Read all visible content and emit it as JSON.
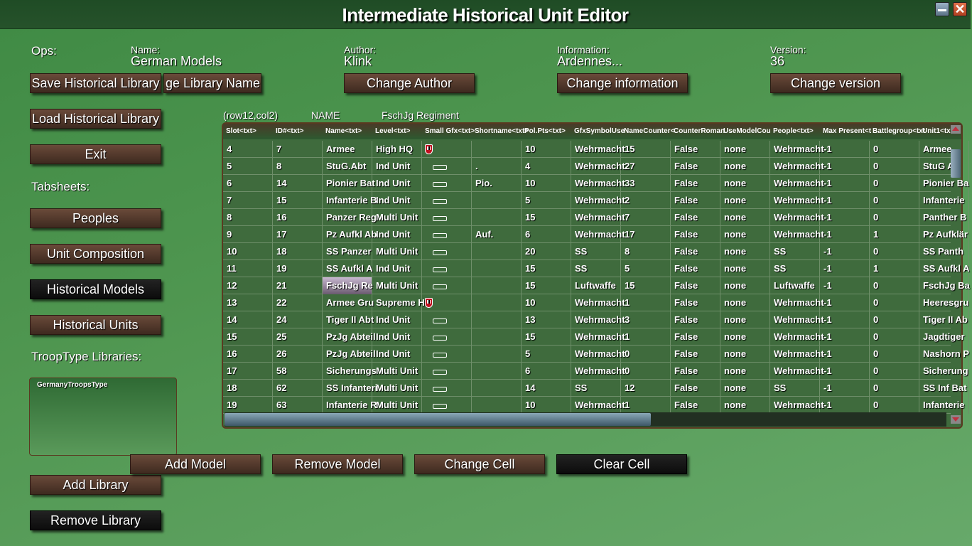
{
  "window": {
    "title": "Intermediate Historical Unit Editor"
  },
  "ops": {
    "label": "Ops:",
    "name_label": "Name:",
    "name_value": "German Models",
    "author_label": "Author:",
    "author_value": "Klink",
    "info_label": "Information:",
    "info_value": "Ardennes...",
    "version_label": "Version:",
    "version_value": "36",
    "save": "Save Historical Library",
    "change_name": "ge Library Name",
    "change_author": "Change Author",
    "change_info": "Change information",
    "change_version": "Change version",
    "load": "Load Historical Library",
    "exit": "Exit"
  },
  "tabsheets": {
    "label": "Tabsheets:",
    "items": [
      "Peoples",
      "Unit Composition",
      "Historical Models",
      "Historical Units"
    ],
    "selected": "Historical Models"
  },
  "troop": {
    "label": "TroopType Libraries:",
    "libraries": [
      "GermanyTroopsType"
    ],
    "add": "Add Library",
    "remove": "Remove Library"
  },
  "cellinfo": {
    "pos": "(row12,col2)",
    "field": "NAME",
    "value": "FschJg Regiment"
  },
  "grid": {
    "columns": [
      "Slot<txt>",
      "ID#<txt>",
      "Name<txt>",
      "Level<txt>",
      "Small Gfx<txt>",
      "Shortname<txt>",
      "Pol.Pts<txt>",
      "GfxSymbolUse",
      "NameCounter<",
      "CounterRoman",
      "UseModelCou",
      "People<txt>",
      "Max Present<t",
      "Battlegroup<txt",
      "Unit1<txt>"
    ],
    "rows": [
      [
        "4",
        "7",
        "Armee",
        "High HQ",
        "shield",
        "",
        "10",
        "Wehrmacht",
        "15",
        "False",
        "none",
        "Wehrmacht",
        "-1",
        "0",
        "Armee"
      ],
      [
        "5",
        "8",
        "StuG.Abt",
        "Ind Unit",
        "counter",
        ".",
        "4",
        "Wehrmacht",
        "27",
        "False",
        "none",
        "Wehrmacht",
        "-1",
        "0",
        "StuG A"
      ],
      [
        "6",
        "14",
        "Pionier Bat",
        "Ind Unit",
        "counter",
        "Pio.",
        "10",
        "Wehrmacht",
        "33",
        "False",
        "none",
        "Wehrmacht",
        "-1",
        "0",
        "Pionier Ba"
      ],
      [
        "7",
        "15",
        "Infanterie B",
        "Ind Unit",
        "counter",
        "",
        "5",
        "Wehrmacht",
        "2",
        "False",
        "none",
        "Wehrmacht",
        "-1",
        "0",
        "Infanterie"
      ],
      [
        "8",
        "16",
        "Panzer Reg",
        "Multi Unit",
        "counter",
        "",
        "15",
        "Wehrmacht",
        "7",
        "False",
        "none",
        "Wehrmacht",
        "-1",
        "0",
        "Panther B"
      ],
      [
        "9",
        "17",
        "Pz Aufkl Ab",
        "Ind Unit",
        "counter",
        "Auf.",
        "6",
        "Wehrmacht",
        "17",
        "False",
        "none",
        "Wehrmacht",
        "-1",
        "1",
        "Pz Aufklär"
      ],
      [
        "10",
        "18",
        "SS Panzer",
        "Multi Unit",
        "counter",
        "",
        "20",
        "SS",
        "8",
        "False",
        "none",
        "SS",
        "-1",
        "0",
        "SS Panth"
      ],
      [
        "11",
        "19",
        "SS Aufkl A",
        "Ind Unit",
        "counter",
        "",
        "15",
        "SS",
        "5",
        "False",
        "none",
        "SS",
        "-1",
        "1",
        "SS Aufkl A"
      ],
      [
        "12",
        "21",
        "FschJg Re",
        "Multi Unit",
        "counter",
        "",
        "15",
        "Luftwaffe",
        "15",
        "False",
        "none",
        "Luftwaffe",
        "-1",
        "0",
        "FschJg Ba"
      ],
      [
        "13",
        "22",
        "Armee Gru",
        "Supreme H",
        "shield",
        "",
        "10",
        "Wehrmacht",
        "1",
        "False",
        "none",
        "Wehrmacht",
        "-1",
        "0",
        "Heeresgru"
      ],
      [
        "14",
        "24",
        "Tiger II Abt",
        "Ind Unit",
        "counter",
        "",
        "13",
        "Wehrmacht",
        "3",
        "False",
        "none",
        "Wehrmacht",
        "-1",
        "0",
        "Tiger II Ab"
      ],
      [
        "15",
        "25",
        "PzJg Abteil",
        "Ind Unit",
        "counter",
        "",
        "15",
        "Wehrmacht",
        "1",
        "False",
        "none",
        "Wehrmacht",
        "-1",
        "0",
        "Jagdtiger"
      ],
      [
        "16",
        "26",
        "PzJg Abteil",
        "Ind Unit",
        "counter",
        "",
        "5",
        "Wehrmacht",
        "0",
        "False",
        "none",
        "Wehrmacht",
        "-1",
        "0",
        "Nashorn P"
      ],
      [
        "17",
        "58",
        "Sicherungs",
        "Multi Unit",
        "counter",
        "",
        "6",
        "Wehrmacht",
        "0",
        "False",
        "none",
        "Wehrmacht",
        "-1",
        "0",
        "Sicherung"
      ],
      [
        "18",
        "62",
        "SS Infanteri",
        "Multi Unit",
        "counter",
        "",
        "14",
        "SS",
        "12",
        "False",
        "none",
        "SS",
        "-1",
        "0",
        "SS Inf Bat"
      ],
      [
        "19",
        "63",
        "Infanterie R",
        "Multi Unit",
        "counter",
        "",
        "10",
        "Wehrmacht",
        "1",
        "False",
        "none",
        "Wehrmacht",
        "-1",
        "0",
        "Infanterie"
      ]
    ],
    "selected_cell": {
      "row": "12",
      "col": "2"
    }
  },
  "actions": {
    "add_model": "Add Model",
    "remove_model": "Remove Model",
    "change_cell": "Change Cell",
    "clear_cell": "Clear Cell"
  }
}
